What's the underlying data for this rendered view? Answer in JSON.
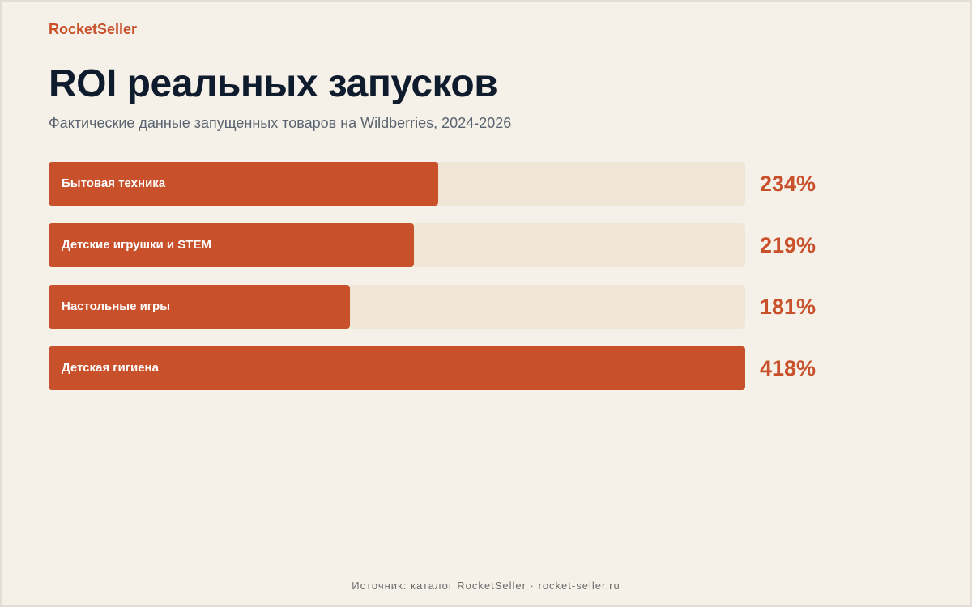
{
  "brand": "RocketSeller",
  "footer": "Источник: каталог RocketSeller · rocket-seller.ru",
  "chart_data": {
    "type": "bar",
    "orientation": "horizontal",
    "title": "ROI реальных запусков",
    "subtitle": "Фактические данные запущенных товаров на Wildberries, 2024-2026",
    "categories": [
      "Бытовая техника",
      "Детские игрушки и STEM",
      "Настольные игры",
      "Детская гигиена"
    ],
    "values": [
      234,
      219,
      181,
      418
    ],
    "value_labels": [
      "234%",
      "219%",
      "181%",
      "418%"
    ],
    "xlim": [
      0,
      418
    ],
    "grid": false,
    "legend": "none",
    "colors": {
      "bar": "#c8502a",
      "track": "#efe6d6",
      "value": "#c8502a"
    }
  }
}
